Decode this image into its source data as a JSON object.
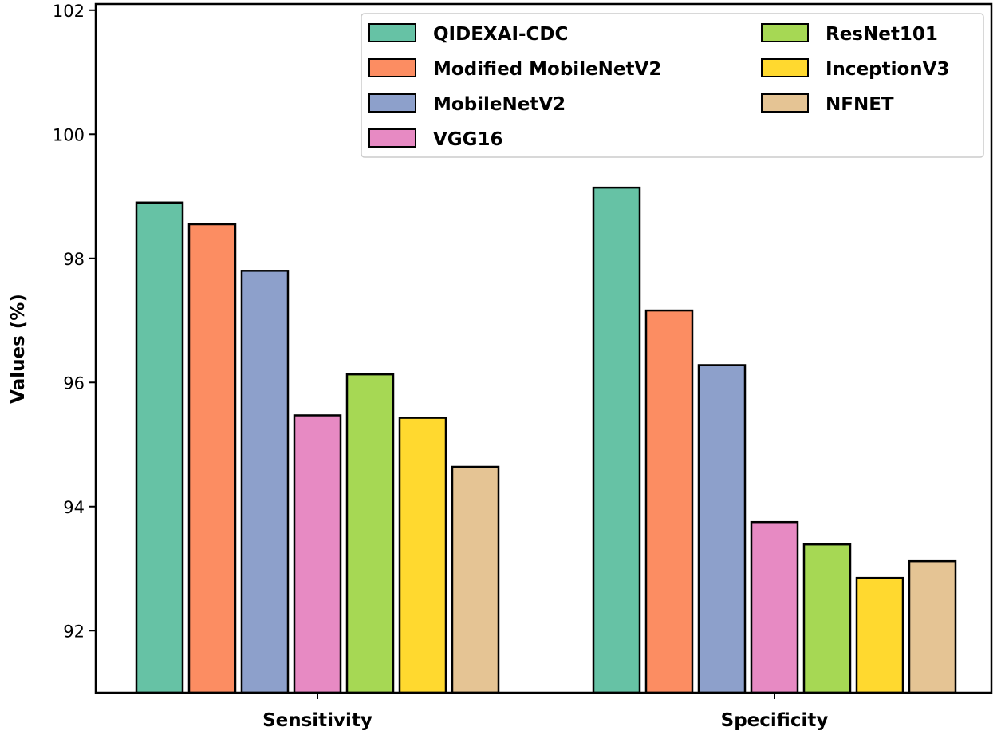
{
  "chart_data": {
    "type": "bar",
    "title": "",
    "xlabel": "",
    "ylabel": "Values (%)",
    "ylim": [
      91,
      102.1
    ],
    "yticks": [
      92,
      94,
      96,
      98,
      100,
      102
    ],
    "grid": false,
    "legend_position": "top-right",
    "categories": [
      "Sensitivity",
      "Specificity"
    ],
    "series": [
      {
        "name": "QIDEXAI-CDC",
        "color": "#66c2a5",
        "values": [
          98.9,
          99.14
        ]
      },
      {
        "name": "Modified MobileNetV2",
        "color": "#fc8d62",
        "values": [
          98.55,
          97.16
        ]
      },
      {
        "name": "MobileNetV2",
        "color": "#8da0cb",
        "values": [
          97.8,
          96.28
        ]
      },
      {
        "name": "VGG16",
        "color": "#e78ac3",
        "values": [
          95.47,
          93.75
        ]
      },
      {
        "name": "ResNet101",
        "color": "#a6d854",
        "values": [
          96.13,
          93.39
        ]
      },
      {
        "name": "InceptionV3",
        "color": "#ffd92f",
        "values": [
          95.43,
          92.85
        ]
      },
      {
        "name": "NFNET",
        "color": "#e5c494",
        "values": [
          94.64,
          93.12
        ]
      }
    ]
  }
}
